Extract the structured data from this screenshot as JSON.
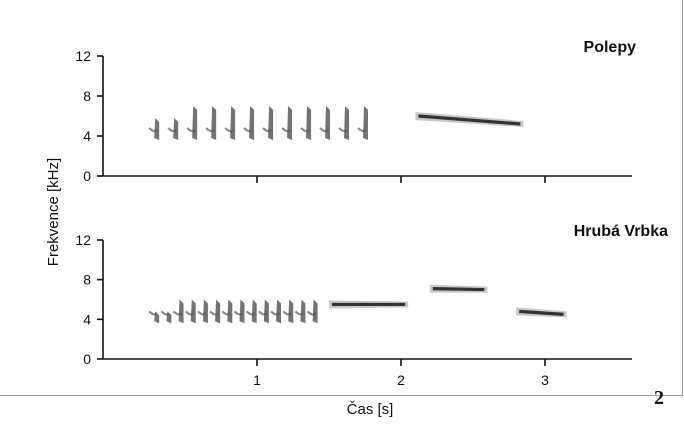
{
  "chart_data": {
    "type": "spectrogram",
    "shared_y_label": "Frekvence [kHz]",
    "x_label": "Čas [s]",
    "x_ticks": [
      1,
      2,
      3
    ],
    "y_ticks": [
      0,
      4,
      8,
      12
    ],
    "panels": [
      {
        "title": "Polepy",
        "trill": {
          "start": 0.3,
          "end": 1.75,
          "count": 12,
          "freq_low": 3.6,
          "freq_high": 7.0
        },
        "tones": [
          {
            "start": 2.1,
            "end": 2.85,
            "freq_start": 6.0,
            "freq_end": 5.2
          }
        ]
      },
      {
        "title": "Hrubá Vrbka",
        "trill": {
          "start": 0.3,
          "end": 1.4,
          "count": 14,
          "freq_low": 3.6,
          "freq_high": 6.0
        },
        "tones": [
          {
            "start": 1.5,
            "end": 2.05,
            "freq_start": 5.5,
            "freq_end": 5.5
          },
          {
            "start": 2.2,
            "end": 2.6,
            "freq_start": 7.1,
            "freq_end": 7.0
          },
          {
            "start": 2.8,
            "end": 3.15,
            "freq_start": 4.8,
            "freq_end": 4.5
          }
        ]
      }
    ]
  },
  "figure_number": "2"
}
